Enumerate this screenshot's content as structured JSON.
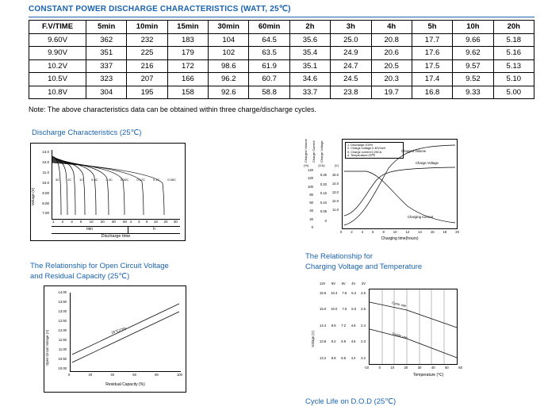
{
  "accent_color": "#1a63ae",
  "title": "CONSTANT POWER DISCHARGE CHARACTERISTICS (WATT, 25℃)",
  "note": "Note: The above characteristics data can be obtained within three charge/discharge cycles.",
  "table": {
    "headers": [
      "F.V/TIME",
      "5min",
      "10min",
      "15min",
      "30min",
      "60min",
      "2h",
      "3h",
      "4h",
      "5h",
      "10h",
      "20h"
    ],
    "rows": [
      [
        "9.60V",
        "362",
        "232",
        "183",
        "104",
        "64.5",
        "35.6",
        "25.0",
        "20.8",
        "17.7",
        "9.66",
        "5.18"
      ],
      [
        "9.90V",
        "351",
        "225",
        "179",
        "102",
        "63.5",
        "35.4",
        "24.9",
        "20.6",
        "17.6",
        "9.62",
        "5.16"
      ],
      [
        "10.2V",
        "337",
        "216",
        "172",
        "98.6",
        "61.9",
        "35.1",
        "24.7",
        "20.5",
        "17.5",
        "9.57",
        "5.13"
      ],
      [
        "10.5V",
        "323",
        "207",
        "166",
        "96.2",
        "60.7",
        "34.6",
        "24.5",
        "20.3",
        "17.4",
        "9.52",
        "5.10"
      ],
      [
        "10.8V",
        "304",
        "195",
        "158",
        "92.6",
        "58.8",
        "33.7",
        "23.8",
        "19.7",
        "16.8",
        "9.33",
        "5.00"
      ]
    ]
  },
  "headings": {
    "discharge": "Discharge Characteristics (25℃)",
    "ocv_line1": "The Relationship for Open Circuit Voltage",
    "ocv_line2": "and Residual Capacity (25℃)",
    "charge_temp_line1": "The Relationship for",
    "charge_temp_line2": "Charging Voltage and Temperature",
    "cycle_life": "Cycle Life on D.O.D (25℃)"
  },
  "discharge_chart": {
    "ylabel": "Voltage (V)",
    "yticks": [
      "13.0",
      "12.0",
      "11.0",
      "10.0",
      "9.00",
      "8.00",
      "7.00"
    ],
    "rate_labels": [
      "3C",
      "2C",
      "1C",
      "0.6C",
      "0.4C",
      "0.25C",
      "0.17C",
      "0.1C",
      "0.05C"
    ],
    "xticks_min": [
      "1",
      "2",
      "3",
      "5",
      "10",
      "20",
      "30",
      "60"
    ],
    "xticks_h": [
      "2",
      "3",
      "5",
      "10",
      "20",
      "30"
    ],
    "unit_min": "min",
    "unit_h": "h",
    "xlabel": "Discharge time"
  },
  "charge_chart": {
    "axis_labels": [
      "Charged Volume",
      "Charge Current",
      "Charge Voltage"
    ],
    "units": [
      "(%)",
      "(CA)",
      "(V)"
    ],
    "pct_ticks": [
      "140",
      "120",
      "100",
      "80",
      "60",
      "40",
      "20",
      "0"
    ],
    "ca_ticks": [
      "0.25",
      "0.20",
      "0.15",
      "0.10",
      "0.05",
      "0"
    ],
    "v_ticks": [
      "15.0",
      "14.0",
      "13.0",
      "12.0",
      "11.0"
    ],
    "legend": [
      "1. Discharge:100%",
      "2. Charge voltage:2.40V/cell",
      "3. Charge current:0.25CA",
      "4. Temperature:25℃"
    ],
    "curve_labels": {
      "volume": "Charged Volume",
      "voltage": "Charge Voltage",
      "current": "Charging Current"
    },
    "xticks": [
      "0",
      "2",
      "4",
      "6",
      "8",
      "10",
      "12",
      "14",
      "16",
      "18",
      "20"
    ],
    "xlabel": "Charging time(hours)"
  },
  "ocv_chart": {
    "ylabel": "Open Circuit Voltage (V)",
    "yticks": [
      "14.00",
      "13.50",
      "13.00",
      "12.50",
      "12.00",
      "11.50",
      "11.00",
      "10.50",
      "10.00"
    ],
    "annotation": "25℃(77F)",
    "xticks": [
      "0",
      "20",
      "40",
      "60",
      "80",
      "100"
    ],
    "xlabel": "Residual Capacity (%)"
  },
  "temp_chart": {
    "ylabel": "Voltage (V)",
    "col_headers": [
      "12V",
      "8V",
      "6V",
      "4V",
      "2V"
    ],
    "tick_rows": [
      [
        "15.6",
        "10.4",
        "7.8",
        "5.2",
        "2.6"
      ],
      [
        "15.0",
        "10.0",
        "7.5",
        "5.0",
        "2.5"
      ],
      [
        "14.4",
        "9.6",
        "7.2",
        "4.8",
        "2.4"
      ],
      [
        "13.8",
        "9.2",
        "6.9",
        "4.6",
        "2.3"
      ],
      [
        "13.2",
        "8.8",
        "6.6",
        "4.4",
        "2.2"
      ]
    ],
    "line_labels": [
      "Cycle use",
      "Trickle use"
    ],
    "xticks": [
      "-10",
      "0",
      "10",
      "20",
      "30",
      "40",
      "50",
      "60"
    ],
    "xlabel": "Temperature (℃)"
  },
  "chart_data": [
    {
      "type": "line",
      "title": "Discharge Characteristics (25℃)",
      "xlabel": "Discharge time (log scale: 1–60 min, then 2–30 h)",
      "ylabel": "Voltage (V)",
      "ylim": [
        7,
        13
      ],
      "series": [
        {
          "name": "3C",
          "plateau_v": 12.0,
          "end_time": "~2min"
        },
        {
          "name": "2C",
          "plateau_v": 12.1,
          "end_time": "~3min"
        },
        {
          "name": "1C",
          "plateau_v": 12.3,
          "end_time": "~5min"
        },
        {
          "name": "0.6C",
          "plateau_v": 12.4,
          "end_time": "~10min"
        },
        {
          "name": "0.4C",
          "plateau_v": 12.5,
          "end_time": "~20min"
        },
        {
          "name": "0.25C",
          "plateau_v": 12.6,
          "end_time": "~60min"
        },
        {
          "name": "0.17C",
          "plateau_v": 12.7,
          "end_time": "~3h"
        },
        {
          "name": "0.1C",
          "plateau_v": 12.8,
          "end_time": "~10h"
        },
        {
          "name": "0.05C",
          "plateau_v": 12.9,
          "end_time": "~20h"
        }
      ],
      "behavior": "Each curve holds a 12–13 V plateau then drops sharply to ~7 V at end of discharge"
    },
    {
      "type": "line",
      "title": "Charge characteristics",
      "xlabel": "Charging time(hours)",
      "xlim": [
        0,
        20
      ],
      "series": [
        {
          "name": "Charged Volume",
          "unit": "%",
          "x": [
            0,
            2,
            4,
            6,
            8,
            12,
            16,
            20
          ],
          "y": [
            0,
            20,
            55,
            85,
            105,
            120,
            125,
            128
          ]
        },
        {
          "name": "Charge Voltage",
          "unit": "V",
          "x": [
            0,
            2,
            4,
            6,
            8,
            12,
            20
          ],
          "y": [
            11.8,
            12.6,
            13.8,
            14.6,
            14.9,
            15.0,
            15.0
          ]
        },
        {
          "name": "Charging Current",
          "unit": "CA",
          "x": [
            0,
            2,
            4,
            6,
            8,
            12,
            16,
            20
          ],
          "y": [
            0.25,
            0.25,
            0.2,
            0.12,
            0.07,
            0.03,
            0.015,
            0.01
          ]
        }
      ],
      "legend_position": "upper-left",
      "conditions": [
        "1. Discharge:100%",
        "2. Charge voltage:2.40V/cell",
        "3. Charge current:0.25CA",
        "4. Temperature:25℃"
      ]
    },
    {
      "type": "line",
      "title": "Open Circuit Voltage vs Residual Capacity (25℃)",
      "xlabel": "Residual Capacity (%)",
      "ylabel": "Open Circuit Voltage (V)",
      "xlim": [
        0,
        100
      ],
      "ylim": [
        10.0,
        14.0
      ],
      "series": [
        {
          "name": "upper bound",
          "x": [
            0,
            100
          ],
          "y": [
            11.9,
            13.1
          ]
        },
        {
          "name": "lower bound",
          "x": [
            0,
            100
          ],
          "y": [
            11.6,
            12.8
          ]
        }
      ],
      "annotation": "25℃(77F)"
    },
    {
      "type": "line",
      "title": "Charging Voltage vs Temperature",
      "xlabel": "Temperature (℃)",
      "xlim": [
        -10,
        60
      ],
      "y_axes": {
        "12V": [
          13.2,
          15.6
        ],
        "8V": [
          8.8,
          10.4
        ],
        "6V": [
          6.6,
          7.8
        ],
        "4V": [
          4.4,
          5.2
        ],
        "2V": [
          2.2,
          2.6
        ]
      },
      "series": [
        {
          "name": "Cycle use",
          "x": [
            -10,
            20,
            60
          ],
          "y_12V": [
            15.2,
            14.8,
            14.1
          ]
        },
        {
          "name": "Trickle use",
          "x": [
            -10,
            20,
            60
          ],
          "y_12V": [
            14.3,
            13.9,
            13.3
          ]
        }
      ],
      "grid": "vertical gridlines at each 10℃"
    }
  ]
}
